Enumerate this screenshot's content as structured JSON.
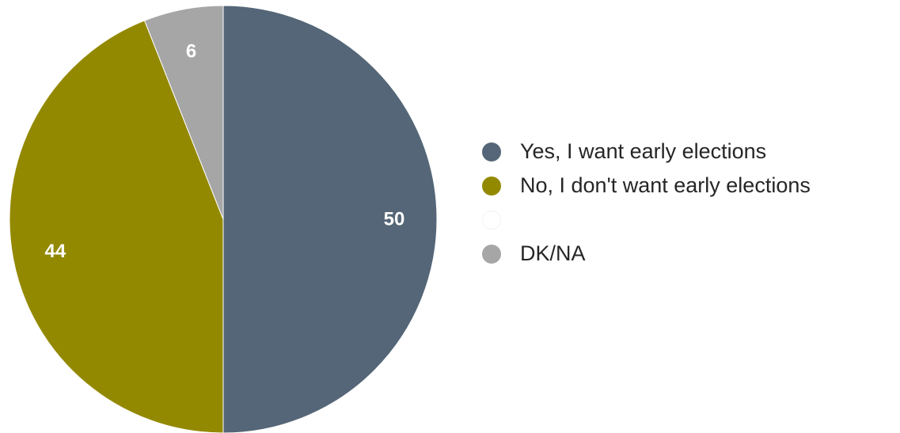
{
  "chart_data": {
    "type": "pie",
    "categories": [
      "Yes, I want early elections",
      "No, I don't want early elections",
      "",
      "DK/NA"
    ],
    "values": [
      50,
      44,
      0,
      6
    ],
    "data_labels": [
      "50",
      "44",
      "",
      "6"
    ],
    "colors": [
      "#546677",
      "#938900",
      "#ffffff",
      "#a6a6a6"
    ],
    "legend": {
      "position": "right",
      "entries": [
        "Yes, I want early elections",
        "No, I don't want early elections",
        "",
        "DK/NA"
      ]
    },
    "start_angle": "12 o'clock",
    "direction": "clockwise",
    "title": ""
  }
}
